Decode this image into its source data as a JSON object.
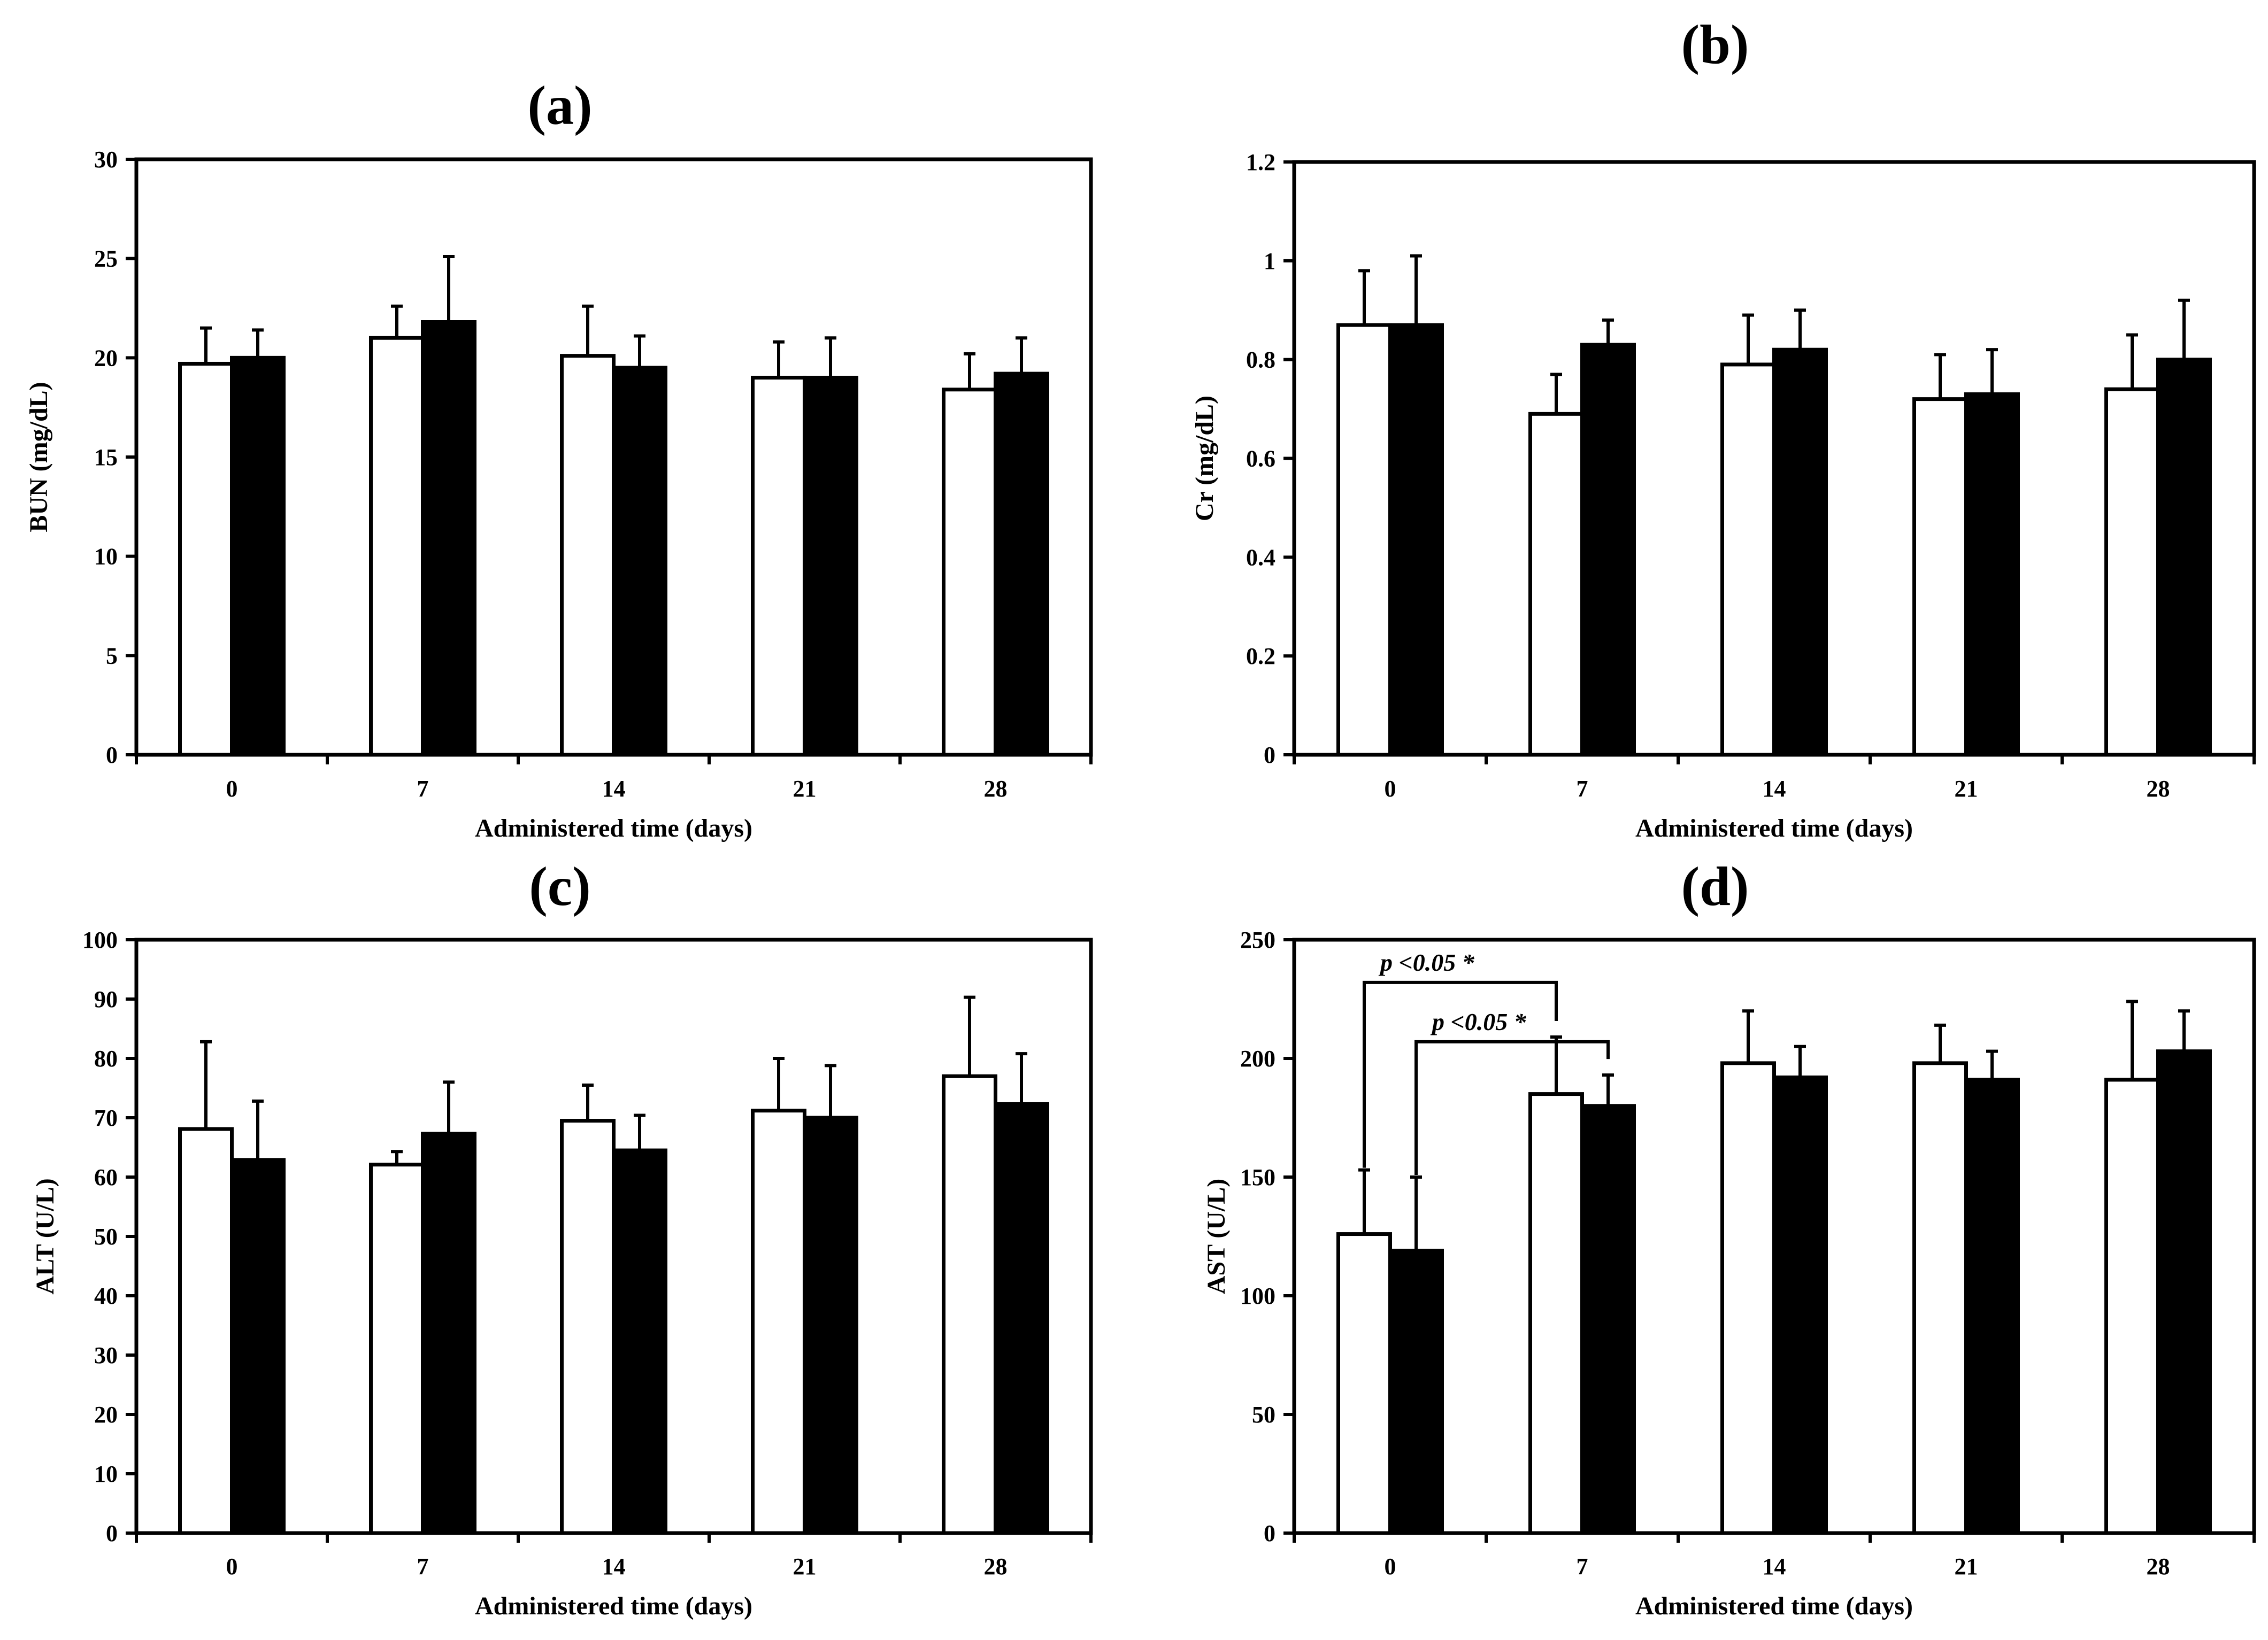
{
  "colors": {
    "series_open": "#ffffff",
    "series_filled": "#000000",
    "axis": "#000000"
  },
  "chart_data": [
    {
      "type": "bar",
      "title": "(a)",
      "xlabel": "Administered time (days)",
      "ylabel": "BUN (mg/dL)",
      "categories": [
        "0",
        "7",
        "14",
        "21",
        "28"
      ],
      "ylim": [
        0,
        30
      ],
      "yticks": [
        "0",
        "5",
        "10",
        "15",
        "20",
        "25",
        "30"
      ],
      "series": [
        {
          "name": "open",
          "values": [
            19.7,
            21.0,
            20.1,
            19.0,
            18.4
          ],
          "errors": [
            1.8,
            1.6,
            2.5,
            1.8,
            1.8
          ]
        },
        {
          "name": "filled",
          "values": [
            20.0,
            21.8,
            19.5,
            19.0,
            19.2
          ],
          "errors": [
            1.4,
            3.3,
            1.6,
            2.0,
            1.8
          ]
        }
      ],
      "annotations": []
    },
    {
      "type": "bar",
      "title": "(b)",
      "xlabel": "Administered time (days)",
      "ylabel": "Cr (mg/dL)",
      "categories": [
        "0",
        "7",
        "14",
        "21",
        "28"
      ],
      "ylim": [
        0,
        1.2
      ],
      "yticks": [
        "0",
        "0.2",
        "0.4",
        "0.6",
        "0.8",
        "1",
        "1.2"
      ],
      "series": [
        {
          "name": "open",
          "values": [
            0.87,
            0.69,
            0.79,
            0.72,
            0.74
          ],
          "errors": [
            0.11,
            0.08,
            0.1,
            0.09,
            0.11
          ]
        },
        {
          "name": "filled",
          "values": [
            0.87,
            0.83,
            0.82,
            0.73,
            0.8
          ],
          "errors": [
            0.14,
            0.05,
            0.08,
            0.09,
            0.12
          ]
        }
      ],
      "annotations": []
    },
    {
      "type": "bar",
      "title": "(c)",
      "xlabel": "Administered time (days)",
      "ylabel": "ALT (U/L)",
      "categories": [
        "0",
        "7",
        "14",
        "21",
        "28"
      ],
      "ylim": [
        0,
        100
      ],
      "yticks": [
        "0",
        "10",
        "20",
        "30",
        "40",
        "50",
        "60",
        "70",
        "80",
        "90",
        "100"
      ],
      "series": [
        {
          "name": "open",
          "values": [
            68.1,
            62.1,
            69.5,
            71.2,
            77.0
          ],
          "errors": [
            14.7,
            2.2,
            6.0,
            8.8,
            13.3
          ]
        },
        {
          "name": "filled",
          "values": [
            62.9,
            67.3,
            64.5,
            70.0,
            72.3
          ],
          "errors": [
            9.9,
            8.7,
            5.9,
            8.8,
            8.5
          ]
        }
      ],
      "annotations": []
    },
    {
      "type": "bar",
      "title": "(d)",
      "xlabel": "Administered time (days)",
      "ylabel": "AST (U/L)",
      "categories": [
        "0",
        "7",
        "14",
        "21",
        "28"
      ],
      "ylim": [
        0,
        250
      ],
      "yticks": [
        "0",
        "50",
        "100",
        "150",
        "200",
        "250"
      ],
      "series": [
        {
          "name": "open",
          "values": [
            126,
            185,
            198,
            198,
            191
          ],
          "errors": [
            27,
            24,
            22,
            16,
            33
          ]
        },
        {
          "name": "filled",
          "values": [
            119,
            180,
            192,
            191,
            203
          ],
          "errors": [
            31,
            13,
            13,
            12,
            17
          ]
        }
      ],
      "annotations": [
        {
          "text": "p <0.05 *",
          "from_category": 0,
          "from_series": 0,
          "to_category": 1,
          "to_series": 0,
          "level": 232
        },
        {
          "text": "p <0.05 *",
          "from_category": 0,
          "from_series": 1,
          "to_category": 1,
          "to_series": 1,
          "level": 207
        }
      ]
    }
  ]
}
